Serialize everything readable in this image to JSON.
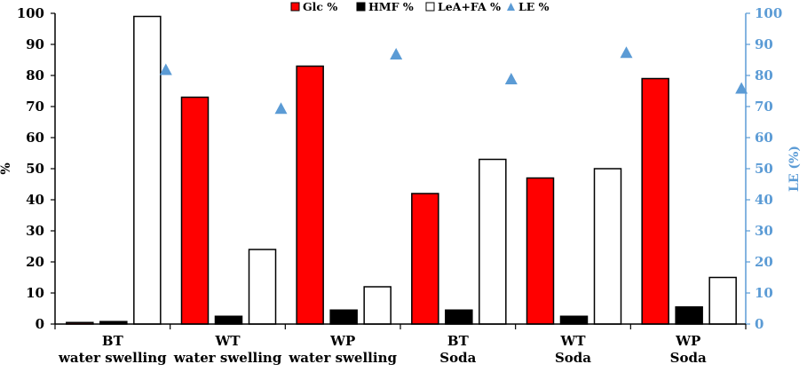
{
  "chart_data": {
    "type": "bar",
    "categories": [
      [
        "BT",
        "water swelling"
      ],
      [
        "WT",
        "water swelling"
      ],
      [
        "WP",
        "water swelling"
      ],
      [
        "BT",
        "Soda"
      ],
      [
        "WT",
        "Soda"
      ],
      [
        "WP",
        "Soda"
      ]
    ],
    "series": [
      {
        "name": "Glc %",
        "axis": "left",
        "kind": "bar",
        "color": "#ff0000",
        "values": [
          0.5,
          73,
          83,
          42,
          47,
          79
        ]
      },
      {
        "name": "HMF %",
        "axis": "left",
        "kind": "bar",
        "color": "#000000",
        "values": [
          0.8,
          2.5,
          4.5,
          4.5,
          2.5,
          5.5
        ]
      },
      {
        "name": "LeA+FA %",
        "axis": "left",
        "kind": "bar",
        "color": "#ffffff",
        "values": [
          99,
          24,
          12,
          53,
          50,
          15
        ]
      },
      {
        "name": "LE %",
        "axis": "right",
        "kind": "marker",
        "marker": "triangle",
        "color": "#5b9bd5",
        "values": [
          82,
          69.5,
          87,
          79,
          87.5,
          76
        ]
      }
    ],
    "ylabel": "%",
    "y2label": "LE (%)",
    "ylim": [
      0,
      100
    ],
    "y2lim": [
      0,
      100
    ],
    "yticks": [
      0,
      10,
      20,
      30,
      40,
      50,
      60,
      70,
      80,
      90,
      100
    ],
    "y2ticks": [
      0,
      10,
      20,
      30,
      40,
      50,
      60,
      70,
      80,
      90,
      100
    ],
    "grid": false,
    "legend_position": "top-center"
  }
}
